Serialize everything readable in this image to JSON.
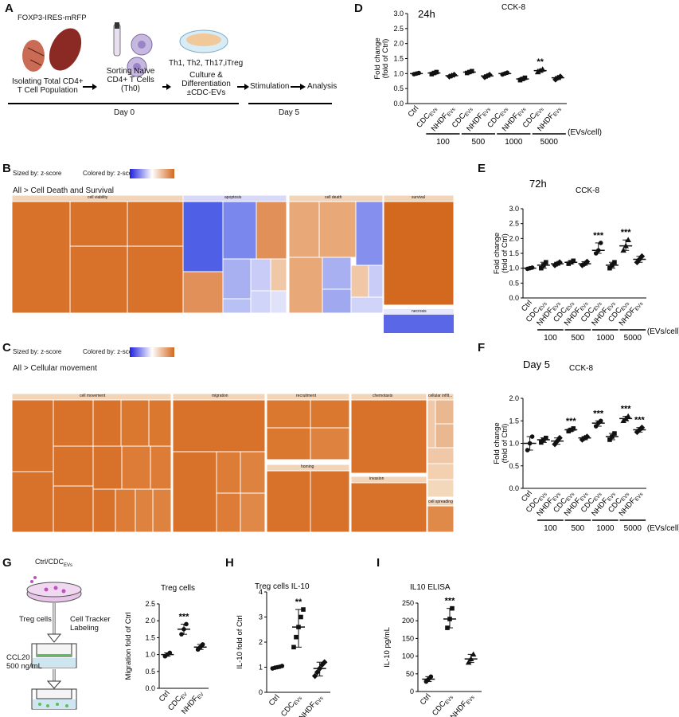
{
  "panels": {
    "A": {
      "letter": "A",
      "mouse_label": "FOXP3-IRES-mRFP",
      "step1": [
        "Isolating Total CD4+",
        "T Cell Population"
      ],
      "step2": [
        "Sorting Naïve",
        "CD4+ T Cells",
        "(Th0)"
      ],
      "step3_top": "Th1, Th2, Th17,iTreg",
      "step3": [
        "Culture &",
        "Differentiation",
        "±CDC-EVs"
      ],
      "step4": "Stimulation",
      "step5": "Analysis",
      "day0": "Day 0",
      "day5": "Day 5"
    },
    "B": {
      "letter": "B",
      "sized_by": "Sized by: z-score",
      "colored_by": "Colored by: z-score",
      "path": "All > Cell Death and Survival",
      "groups": [
        "cell viability",
        "apoptosis",
        "cell death",
        "survival",
        "necrosis"
      ]
    },
    "C": {
      "letter": "C",
      "sized_by": "Sized by: z-score",
      "colored_by": "Colored by: z-score",
      "path": "All > Cellular movement",
      "groups": [
        "cell movement",
        "migration",
        "recruitment",
        "chemotaxis",
        "cellular infilt...",
        "homing",
        "invasion",
        "cell spreading"
      ]
    },
    "D": {
      "letter": "D",
      "time": "24h",
      "assay": "CCK-8"
    },
    "E": {
      "letter": "E",
      "time": "72h",
      "assay": "CCK-8"
    },
    "F": {
      "letter": "F",
      "time": "Day 5",
      "assay": "CCK-8"
    },
    "G": {
      "letter": "G",
      "schematic": {
        "top": "Ctrl/CDC",
        "top_sub": "EVs",
        "treg": "Treg cells",
        "tracker": [
          "Cell Tracker",
          "Labeling"
        ],
        "ccl20": [
          "CCL20",
          "500 ng/mL"
        ]
      }
    },
    "H": {
      "letter": "H"
    },
    "I": {
      "letter": "I"
    }
  },
  "colors": {
    "orange": "#d2691e",
    "blue": "#4a5ae8",
    "treemap_header": "#f2d4b8"
  },
  "chart_data": [
    {
      "id": "D",
      "type": "scatter",
      "title": "24h",
      "subtitle": "CCK-8",
      "ylabel": "Fold change (fold of Ctrl)",
      "ylim": [
        0,
        3.0
      ],
      "yticks": [
        "0.0",
        "0.5",
        "1.0",
        "1.5",
        "2.0",
        "2.5",
        "3.0"
      ],
      "categories": [
        "Ctrl",
        "CDCEVs",
        "NHDFEVs",
        "CDCEVs",
        "NHDFEVs",
        "CDCEVs",
        "NHDFEVs",
        "CDCEVs",
        "NHDFEVs"
      ],
      "dose_groups": [
        "100",
        "500",
        "1000",
        "5000"
      ],
      "dose_unit": "(EVs/cell)",
      "means": [
        1.0,
        1.02,
        0.93,
        1.05,
        0.92,
        1.0,
        0.82,
        1.1,
        0.86
      ],
      "points": [
        [
          0.98,
          1.0,
          1.02
        ],
        [
          0.98,
          1.02,
          1.05
        ],
        [
          0.9,
          0.93,
          0.96
        ],
        [
          1.02,
          1.05,
          1.08
        ],
        [
          0.88,
          0.92,
          0.96
        ],
        [
          0.97,
          1.0,
          1.03
        ],
        [
          0.78,
          0.82,
          0.86
        ],
        [
          1.05,
          1.1,
          1.14
        ],
        [
          0.8,
          0.86,
          0.9
        ]
      ],
      "significance": [
        "",
        "",
        "",
        "",
        "",
        "",
        "",
        "**",
        ""
      ]
    },
    {
      "id": "E",
      "type": "scatter",
      "title": "72h",
      "subtitle": "CCK-8",
      "ylabel": "Fold change (fold of Ctrl)",
      "ylim": [
        0,
        3.0
      ],
      "yticks": [
        "0.0",
        "0.5",
        "1.0",
        "1.5",
        "2.0",
        "2.5",
        "3.0"
      ],
      "categories": [
        "Ctrl",
        "CDCEVs",
        "NHDFEVs",
        "CDCEVs",
        "NHDFEVs",
        "CDCEVs",
        "NHDFEVs",
        "CDCEVs",
        "NHDFEVs"
      ],
      "dose_groups": [
        "100",
        "500",
        "1000",
        "5000"
      ],
      "dose_unit": "(EVs/cell)",
      "means": [
        1.0,
        1.1,
        1.15,
        1.2,
        1.15,
        1.6,
        1.1,
        1.75,
        1.3
      ],
      "points": [
        [
          0.98,
          1.0,
          1.02
        ],
        [
          1.0,
          1.1,
          1.2
        ],
        [
          1.1,
          1.15,
          1.2
        ],
        [
          1.15,
          1.2,
          1.25
        ],
        [
          1.1,
          1.15,
          1.22
        ],
        [
          1.5,
          1.6,
          1.85
        ],
        [
          1.0,
          1.1,
          1.2
        ],
        [
          1.6,
          1.75,
          1.95
        ],
        [
          1.2,
          1.3,
          1.4
        ]
      ],
      "significance": [
        "",
        "",
        "",
        "",
        "",
        "***",
        "",
        "***",
        ""
      ]
    },
    {
      "id": "F",
      "type": "scatter",
      "title": "Day 5",
      "subtitle": "CCK-8",
      "ylabel": "Fold change (fold of Ctrl)",
      "ylim": [
        0,
        2.0
      ],
      "yticks": [
        "0.0",
        "0.5",
        "1.0",
        "1.5",
        "2.0"
      ],
      "categories": [
        "Ctrl",
        "CDCEVs",
        "NHDFEVs",
        "CDCEVs",
        "NHDFEVs",
        "CDCEVs",
        "NHDFEVs",
        "CDCEVs",
        "NHDFEVs"
      ],
      "dose_groups": [
        "100",
        "500",
        "1000",
        "5000"
      ],
      "dose_unit": "(EVs/cell)",
      "means": [
        1.0,
        1.08,
        1.05,
        1.3,
        1.12,
        1.45,
        1.15,
        1.55,
        1.3
      ],
      "points": [
        [
          0.85,
          1.0,
          1.15
        ],
        [
          1.02,
          1.08,
          1.12
        ],
        [
          0.98,
          1.05,
          1.12
        ],
        [
          1.27,
          1.3,
          1.33
        ],
        [
          1.08,
          1.12,
          1.15
        ],
        [
          1.38,
          1.45,
          1.5
        ],
        [
          1.08,
          1.15,
          1.22
        ],
        [
          1.5,
          1.55,
          1.6
        ],
        [
          1.25,
          1.3,
          1.35
        ]
      ],
      "significance": [
        "",
        "",
        "",
        "***",
        "",
        "***",
        "",
        "***",
        "***"
      ]
    },
    {
      "id": "G",
      "type": "scatter",
      "title": "Treg cells",
      "ylabel": "Migration fold of Ctrl",
      "ylim": [
        0,
        2.5
      ],
      "yticks": [
        "0.0",
        "0.5",
        "1.0",
        "1.5",
        "2.0",
        "2.5"
      ],
      "categories": [
        "Ctrl",
        "CDCEV",
        "NHDFEV"
      ],
      "means": [
        1.0,
        1.75,
        1.22
      ],
      "points": [
        [
          0.95,
          1.0,
          1.05
        ],
        [
          1.6,
          1.75,
          1.9
        ],
        [
          1.15,
          1.22,
          1.3
        ]
      ],
      "significance": [
        "",
        "***",
        ""
      ]
    },
    {
      "id": "H",
      "type": "scatter",
      "title": "Treg cells IL-10",
      "ylabel": "IL-10 fold of Ctrl",
      "ylim": [
        0,
        4
      ],
      "yticks": [
        "0",
        "1",
        "2",
        "3",
        "4"
      ],
      "categories": [
        "Ctrl",
        "CDCEVs",
        "NHDFEVs"
      ],
      "means": [
        1.0,
        2.6,
        0.95
      ],
      "points": [
        [
          0.95,
          0.98,
          1.0,
          1.02,
          1.05
        ],
        [
          1.8,
          2.2,
          2.6,
          3.0,
          3.3
        ],
        [
          0.65,
          0.8,
          0.95,
          1.1,
          1.2
        ]
      ],
      "significance": [
        "",
        "**",
        ""
      ]
    },
    {
      "id": "I",
      "type": "scatter",
      "title": "IL10 ELISA",
      "ylabel": "IL-10 pg/mL",
      "ylim": [
        0,
        250
      ],
      "yticks": [
        "0",
        "50",
        "100",
        "150",
        "200",
        "250"
      ],
      "categories": [
        "Ctrl",
        "CDCEVs",
        "NHDFEVs"
      ],
      "means": [
        35,
        205,
        92
      ],
      "points": [
        [
          28,
          35,
          42
        ],
        [
          180,
          205,
          235
        ],
        [
          82,
          92,
          105
        ]
      ],
      "significance": [
        "",
        "***",
        ""
      ]
    }
  ]
}
